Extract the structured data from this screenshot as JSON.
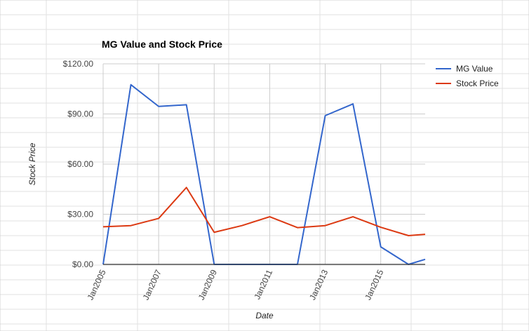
{
  "chart_data": {
    "type": "line",
    "title": "MG Value and Stock Price",
    "xlabel": "Date",
    "ylabel": "Stock Price",
    "ylim": [
      0,
      120
    ],
    "yticks": [
      0,
      30,
      60,
      90,
      120
    ],
    "ytick_labels": [
      "$0.00",
      "$30.00",
      "$60.00",
      "$90.00",
      "$120.00"
    ],
    "xlim": [
      2005,
      2016.6
    ],
    "xticks": [
      2005,
      2007,
      2009,
      2011,
      2013,
      2015
    ],
    "xtick_labels": [
      "Jan2005",
      "Jan2007",
      "Jan2009",
      "Jan2011",
      "Jan2013",
      "Jan2015"
    ],
    "grid": true,
    "legend_position": "right",
    "series": [
      {
        "name": "MG Value",
        "color": "#3366cc",
        "x": [
          2005,
          2006,
          2007,
          2008,
          2009,
          2010,
          2011,
          2012,
          2013,
          2014,
          2015,
          2016,
          2016.6
        ],
        "values": [
          0,
          107.5,
          94.5,
          95.5,
          0,
          0,
          0,
          0,
          89,
          96,
          10.5,
          0,
          3
        ]
      },
      {
        "name": "Stock Price",
        "color": "#dc3912",
        "x": [
          2005,
          2006,
          2007,
          2008,
          2009,
          2010,
          2011,
          2012,
          2013,
          2014,
          2015,
          2016,
          2016.6
        ],
        "values": [
          22.5,
          23.2,
          27.5,
          46,
          19.2,
          23.2,
          28.5,
          22,
          23.2,
          28.5,
          22.2,
          17.2,
          18
        ]
      }
    ]
  }
}
